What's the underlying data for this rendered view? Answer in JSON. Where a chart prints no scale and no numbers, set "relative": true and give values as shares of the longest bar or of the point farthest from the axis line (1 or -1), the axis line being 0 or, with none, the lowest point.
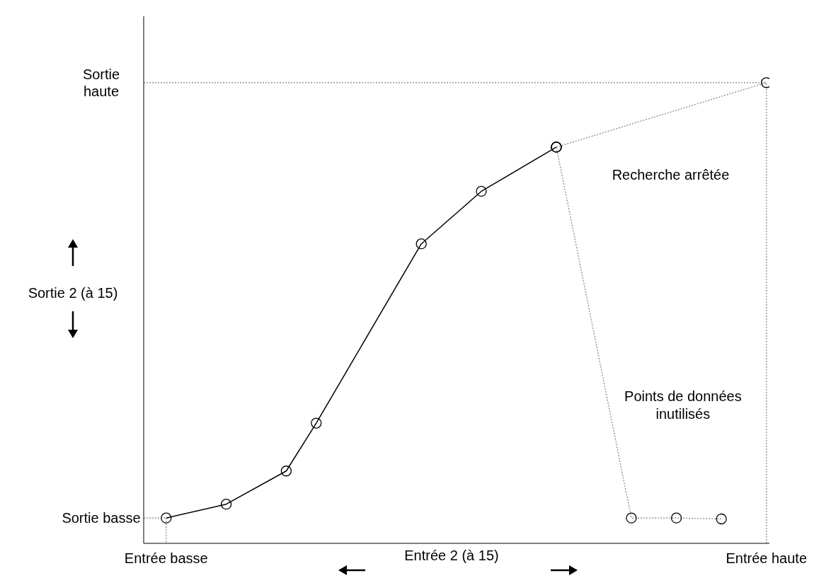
{
  "chart_data": {
    "type": "line",
    "relative": true,
    "xlabel": "Entrée 2 (à 15)",
    "ylabel": "Sortie 2 (à 15)",
    "categories": [
      "Entrée basse",
      null,
      null,
      null,
      null,
      null,
      null,
      null,
      null,
      null,
      null,
      null,
      null,
      null,
      null,
      null,
      null,
      null,
      null,
      null,
      null,
      null,
      null,
      null,
      null,
      null,
      null,
      null,
      null,
      null,
      null,
      null,
      null,
      null,
      null,
      null,
      null,
      null,
      null,
      null,
      "Entrée haute"
    ],
    "series": [
      {
        "color": "#000000",
        "marker": "circle",
        "line_style": "solid",
        "values": [
          0.055,
          null,
          null,
          null,
          0.085,
          null,
          null,
          null,
          0.157,
          null,
          0.261,
          null,
          null,
          null,
          null,
          null,
          null,
          0.65,
          null,
          null,
          null,
          0.764,
          null,
          null,
          null,
          null,
          0.86,
          null,
          null,
          null,
          null,
          null,
          null,
          null,
          null,
          null,
          null,
          null,
          null,
          null,
          null
        ]
      },
      {
        "color": "#808080",
        "marker": "circle",
        "line_style": "dotted",
        "values": [
          null,
          null,
          null,
          null,
          null,
          null,
          null,
          null,
          null,
          null,
          null,
          null,
          null,
          null,
          null,
          null,
          null,
          null,
          null,
          null,
          null,
          null,
          null,
          null,
          null,
          null,
          0.86,
          null,
          null,
          null,
          null,
          null,
          null,
          null,
          null,
          null,
          null,
          null,
          null,
          null,
          1
        ]
      },
      {
        "color": "#808080",
        "marker": "circle",
        "line_style": "dotted",
        "values": [
          null,
          null,
          null,
          null,
          null,
          null,
          null,
          null,
          null,
          null,
          null,
          null,
          null,
          null,
          null,
          null,
          null,
          null,
          null,
          null,
          null,
          null,
          null,
          null,
          null,
          null,
          0.86,
          null,
          null,
          null,
          null,
          0.055,
          null,
          null,
          0.055,
          null,
          null,
          0.053,
          null,
          null,
          null
        ]
      }
    ],
    "ref_lines": [
      {
        "axis": "y",
        "value": 1,
        "label": "Sortie haute",
        "color": "#808080",
        "line_style": "dotted"
      },
      {
        "axis": "x",
        "value": "Entrée haute",
        "color": "#808080",
        "line_style": "dotted"
      }
    ],
    "annotations": [
      "Sortie basse",
      "Recherche arrêtée",
      "Points de données inutilisés"
    ]
  }
}
